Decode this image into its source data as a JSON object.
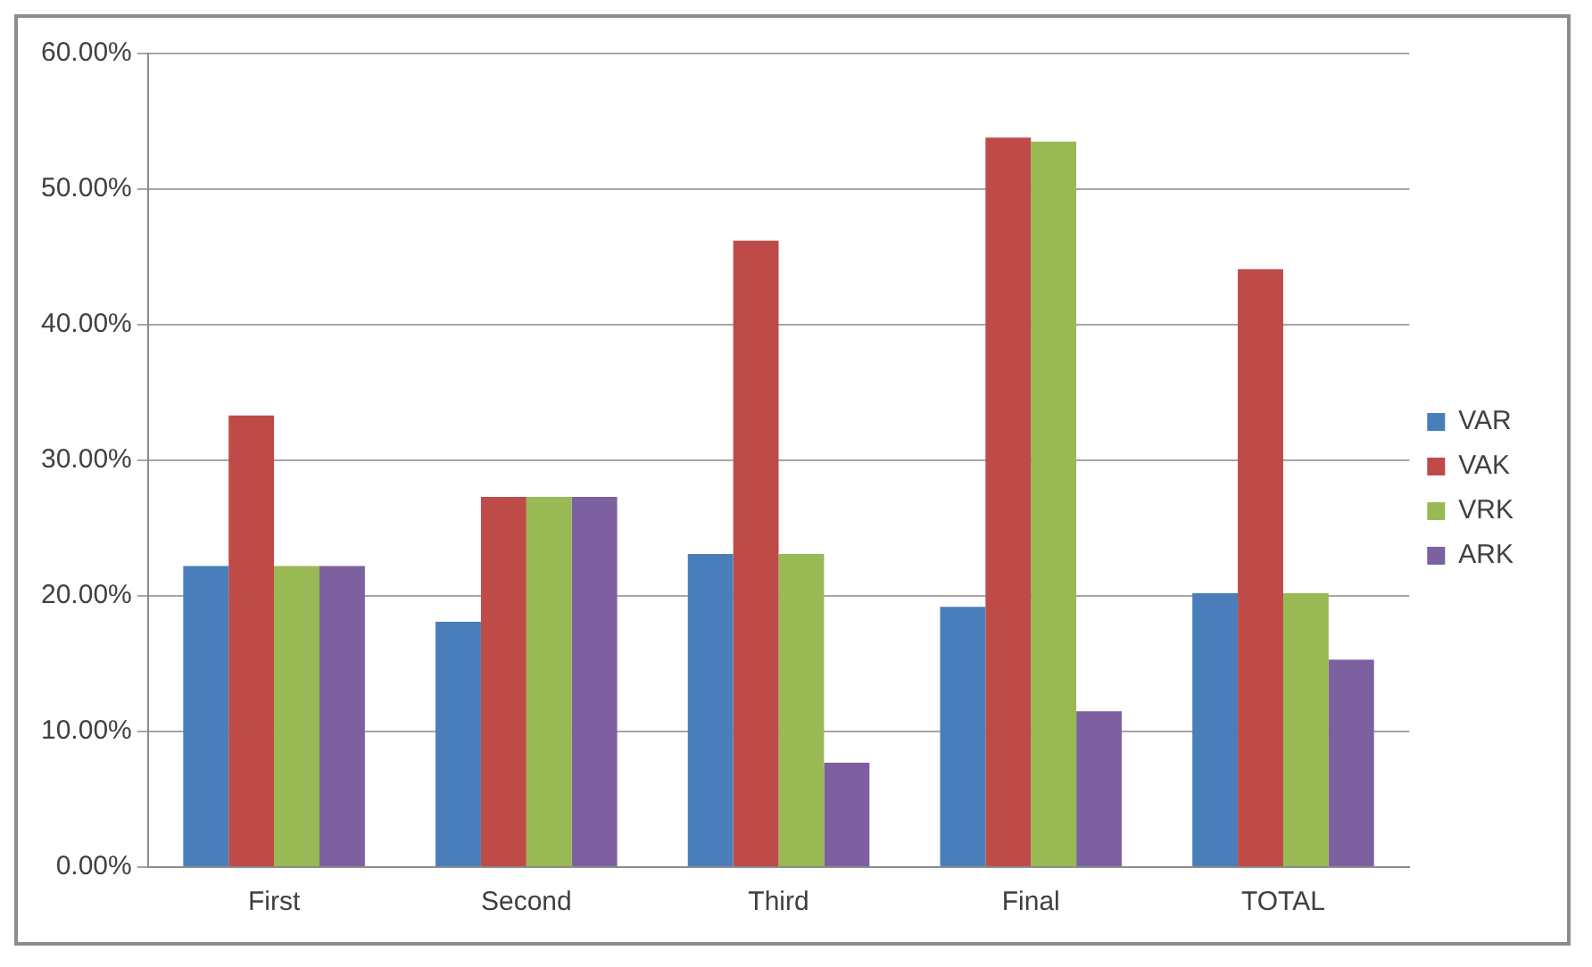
{
  "chart_data": {
    "type": "bar",
    "categories": [
      "First",
      "Second",
      "Third",
      "Final",
      "TOTAL"
    ],
    "series": [
      {
        "name": "VAR",
        "color": "#4a7ebb",
        "values": [
          22.2,
          18.1,
          23.1,
          19.2,
          20.2
        ]
      },
      {
        "name": "VAK",
        "color": "#be4b48",
        "values": [
          33.3,
          27.3,
          46.2,
          53.8,
          44.1
        ]
      },
      {
        "name": "VRK",
        "color": "#98b954",
        "values": [
          22.2,
          27.3,
          23.1,
          53.5,
          20.2
        ]
      },
      {
        "name": "ARK",
        "color": "#7d60a0",
        "values": [
          22.2,
          27.3,
          7.7,
          11.5,
          15.3
        ]
      }
    ],
    "ylim": [
      0,
      60
    ],
    "yticks": [
      {
        "value": 0,
        "label": "0.00%"
      },
      {
        "value": 10,
        "label": "10.00%"
      },
      {
        "value": 20,
        "label": "20.00%"
      },
      {
        "value": 30,
        "label": "30.00%"
      },
      {
        "value": 40,
        "label": "40.00%"
      },
      {
        "value": 50,
        "label": "50.00%"
      },
      {
        "value": 60,
        "label": "60.00%"
      }
    ],
    "grid": "y",
    "legend": "right"
  }
}
